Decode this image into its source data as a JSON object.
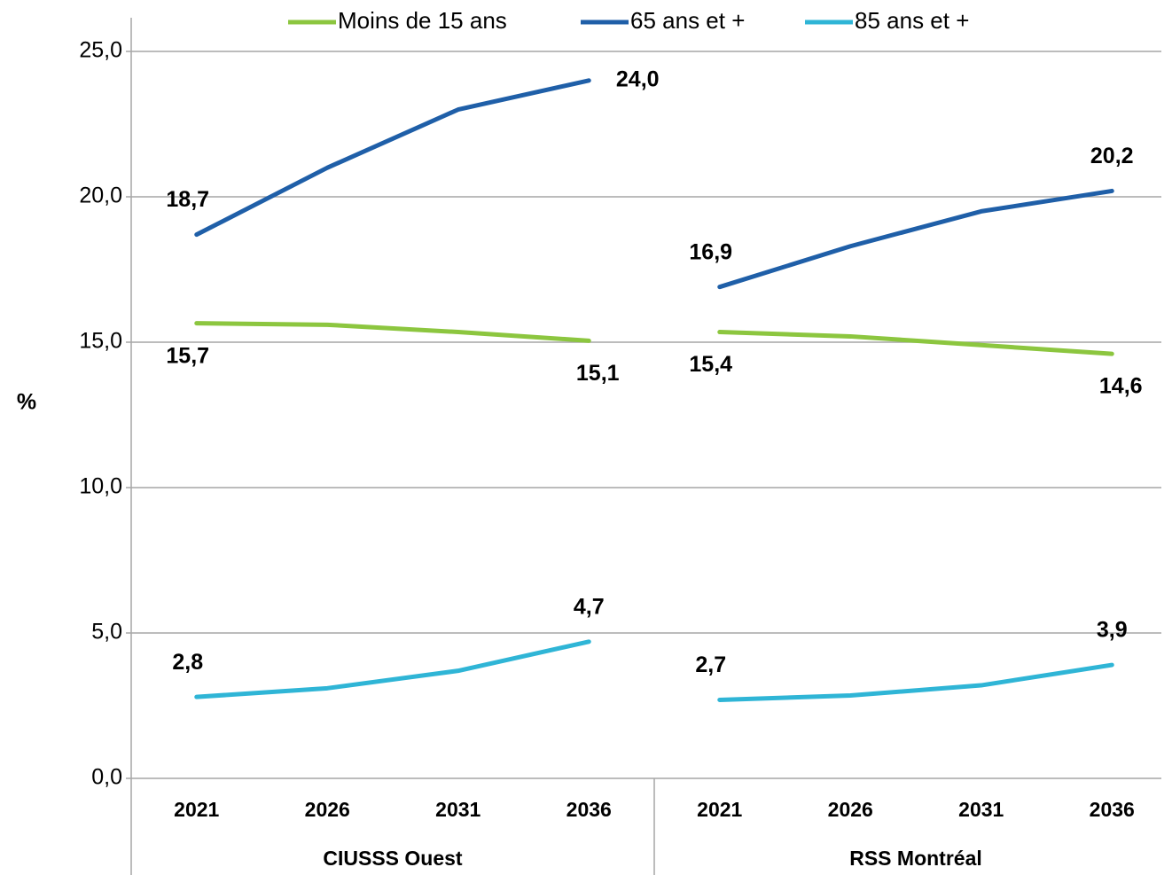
{
  "chart_data": {
    "type": "line",
    "ylabel": "%",
    "groups": [
      {
        "label": "CIUSSS Ouest",
        "categories": [
          "2021",
          "2026",
          "2031",
          "2036"
        ]
      },
      {
        "label": "RSS Montréal",
        "categories": [
          "2021",
          "2026",
          "2031",
          "2036"
        ]
      }
    ],
    "series": [
      {
        "name": "Moins de 15 ans",
        "color": "#8cc63f",
        "values": [
          [
            15.65,
            15.6,
            15.35,
            15.05
          ],
          [
            15.35,
            15.2,
            14.9,
            14.6
          ]
        ],
        "value_labels": [
          [
            "15,7",
            null,
            null,
            "15,1"
          ],
          [
            "15,4",
            null,
            null,
            "14,6"
          ]
        ]
      },
      {
        "name": "65 ans et +",
        "color": "#1f5fa8",
        "values": [
          [
            18.7,
            21.0,
            23.0,
            24.0
          ],
          [
            16.9,
            18.3,
            19.5,
            20.2
          ]
        ],
        "value_labels": [
          [
            "18,7",
            null,
            null,
            "24,0"
          ],
          [
            "16,9",
            null,
            null,
            "20,2"
          ]
        ]
      },
      {
        "name": "85 ans et +",
        "color": "#2fb5d6",
        "values": [
          [
            2.8,
            3.1,
            3.7,
            4.7
          ],
          [
            2.7,
            2.85,
            3.2,
            3.9
          ]
        ],
        "value_labels": [
          [
            "2,8",
            null,
            null,
            "4,7"
          ],
          [
            "2,7",
            null,
            null,
            "3,9"
          ]
        ]
      }
    ],
    "ylim": [
      0,
      25
    ],
    "yticks": [
      {
        "value": 0,
        "label": "0,0"
      },
      {
        "value": 5,
        "label": "5,0"
      },
      {
        "value": 10,
        "label": "10,0"
      },
      {
        "value": 15,
        "label": "15,0"
      },
      {
        "value": 20,
        "label": "20,0"
      },
      {
        "value": 25,
        "label": "25,0"
      }
    ],
    "grid": true
  }
}
